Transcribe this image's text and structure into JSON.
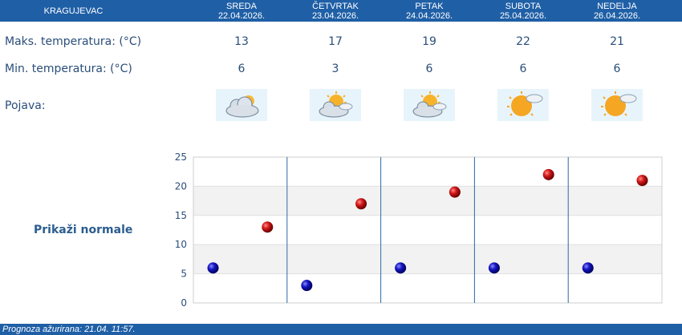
{
  "header": {
    "location": "KRAGUJEVAC",
    "days": [
      {
        "name": "SREDA",
        "date": "22.04.2026."
      },
      {
        "name": "ČETVRTAK",
        "date": "23.04.2026."
      },
      {
        "name": "PETAK",
        "date": "24.04.2026."
      },
      {
        "name": "SUBOTA",
        "date": "25.04.2026."
      },
      {
        "name": "NEDELJA",
        "date": "26.04.2026."
      }
    ]
  },
  "rows": {
    "max_label": "Maks. temperatura: (°C)",
    "min_label": "Min. temperatura: (°C)",
    "phenomenon_label": "Pojava:",
    "max": [
      "13",
      "17",
      "19",
      "22",
      "21"
    ],
    "min": [
      "6",
      "3",
      "6",
      "6",
      "6"
    ],
    "icons": [
      "cloudy-sun-icon",
      "partly-cloudy-icon",
      "partly-cloudy-icon",
      "sunny-cloud-icon",
      "sunny-cloud-icon"
    ]
  },
  "normals_link": "Prikaži normale",
  "footer": {
    "updated": "Prognoza ažurirana:  21.04. 11:57."
  },
  "colors": {
    "header_bg": "#1f5fa6",
    "max_dot": "#c81010",
    "min_dot": "#1010b0",
    "text": "#2a4e7a"
  },
  "chart_data": {
    "type": "scatter",
    "categories": [
      "22.04.2026.",
      "23.04.2026.",
      "24.04.2026.",
      "25.04.2026.",
      "26.04.2026."
    ],
    "series": [
      {
        "values": [
          13,
          17,
          19,
          22,
          21
        ],
        "color": "#c81010"
      },
      {
        "values": [
          6,
          3,
          6,
          6,
          6
        ],
        "color": "#1010b0"
      }
    ],
    "ylim": [
      0,
      25
    ],
    "yticks": [
      "0",
      "5",
      "10",
      "15",
      "20",
      "25"
    ],
    "grid": true
  }
}
